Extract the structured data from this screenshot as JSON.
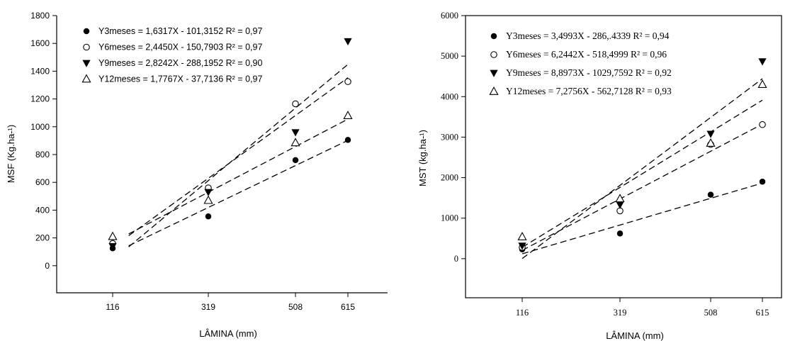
{
  "chart_data": [
    {
      "type": "scatter",
      "xlabel": "LÂMINA (mm)",
      "ylabel": "MSF (Kg.ha-¹)",
      "x": [
        116,
        319,
        508,
        615
      ],
      "x_ticks": [
        "116",
        "319",
        "508",
        "615"
      ],
      "ylim": [
        -200,
        1800
      ],
      "y_ticks": [
        "0",
        "200",
        "400",
        "600",
        "800",
        "1000",
        "1200",
        "1400",
        "1600",
        "1800"
      ],
      "legend_position": "top-left",
      "grid": false,
      "series": [
        {
          "marker": "filled-circle",
          "legend": "Y3meses = 1,6317X - 101,3152  R² = 0,97",
          "values": [
            125,
            355,
            760,
            905
          ],
          "fit": {
            "slope": 1.6317,
            "intercept": -101.3152
          }
        },
        {
          "marker": "open-circle",
          "legend": "Y6meses = 2,4450X - 150,7903   R² = 0,97",
          "values": [
            160,
            560,
            1165,
            1325
          ],
          "fit": {
            "slope": 2.445,
            "intercept": -150.7903
          }
        },
        {
          "marker": "filled-triangle-down",
          "legend": "Y9meses = 2,8242X - 288,1952   R² = 0,90",
          "values": [
            140,
            530,
            960,
            1615
          ],
          "fit": {
            "slope": 2.8242,
            "intercept": -288.1952
          }
        },
        {
          "marker": "open-triangle-up",
          "legend": "Y12meses = 1,7767X - 37,7136  R² = 0,97",
          "values": [
            210,
            470,
            885,
            1080
          ],
          "fit": {
            "slope": 1.7767,
            "intercept": -37.7136
          }
        }
      ]
    },
    {
      "type": "scatter",
      "xlabel": "LÂMINA (mm)",
      "ylabel": "MST (kg.ha-¹)",
      "x": [
        116,
        319,
        508,
        615
      ],
      "x_ticks": [
        "116",
        "319",
        "508",
        "615"
      ],
      "ylim": [
        -1000,
        6000
      ],
      "y_ticks": [
        "0",
        "1000",
        "2000",
        "3000",
        "4000",
        "5000",
        "6000"
      ],
      "legend_position": "top-left",
      "grid": false,
      "series": [
        {
          "marker": "filled-circle",
          "legend": "Y3meses = 3,4993X - 286,.4339  R² = 0,94",
          "values": [
            230,
            620,
            1580,
            1900
          ],
          "fit": {
            "slope": 3.4993,
            "intercept": -286.4339
          }
        },
        {
          "marker": "open-circle",
          "legend": "Y6meses = 6,2442X - 518,4999  R² = 0,96",
          "values": [
            280,
            1180,
            2820,
            3310
          ],
          "fit": {
            "slope": 6.2442,
            "intercept": -518.4999
          }
        },
        {
          "marker": "filled-triangle-down",
          "legend": "Y9meses = 8,8973X - 1029,7592  R² = 0,92",
          "values": [
            320,
            1330,
            3080,
            4870
          ],
          "fit": {
            "slope": 8.8973,
            "intercept": -1029.7592
          }
        },
        {
          "marker": "open-triangle-up",
          "legend": "Y12meses = 7,2756X - 562,7128  R² = 0,93",
          "values": [
            540,
            1480,
            2850,
            4300
          ],
          "fit": {
            "slope": 7.2756,
            "intercept": -562.7128
          }
        }
      ]
    }
  ]
}
